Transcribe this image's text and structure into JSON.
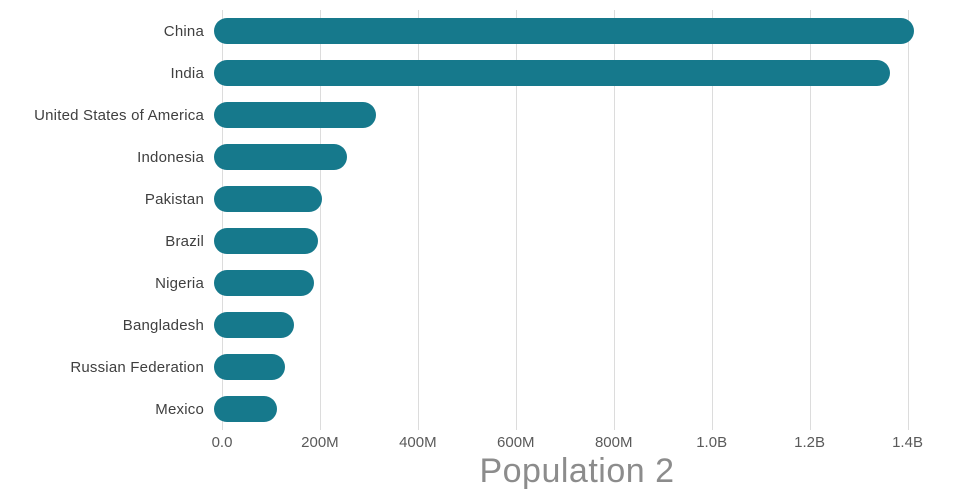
{
  "chart_data": {
    "type": "bar",
    "orientation": "horizontal",
    "title": "Population 2",
    "categories": [
      "China",
      "India",
      "United States of America",
      "Indonesia",
      "Pakistan",
      "Brazil",
      "Nigeria",
      "Bangladesh",
      "Russian Federation",
      "Mexico"
    ],
    "values": [
      1430000000,
      1380000000,
      330000000,
      272000000,
      220000000,
      212000000,
      205000000,
      164000000,
      145000000,
      128000000
    ],
    "series": [
      {
        "name": "Population",
        "values": [
          1430000000,
          1380000000,
          330000000,
          272000000,
          220000000,
          212000000,
          205000000,
          164000000,
          145000000,
          128000000
        ]
      }
    ],
    "x_ticks": [
      {
        "value": 0,
        "label": "0.0"
      },
      {
        "value": 200000000,
        "label": "200M"
      },
      {
        "value": 400000000,
        "label": "400M"
      },
      {
        "value": 600000000,
        "label": "600M"
      },
      {
        "value": 800000000,
        "label": "800M"
      },
      {
        "value": 1000000000,
        "label": "1.0B"
      },
      {
        "value": 1200000000,
        "label": "1.2B"
      },
      {
        "value": 1400000000,
        "label": "1.4B"
      }
    ],
    "xlim": [
      0,
      1450000000
    ],
    "grid": true,
    "legend_position": "none",
    "bar_color": "#16798c",
    "gridline_color": "#dcdcdc",
    "title_color": "#8c8c8c",
    "xlabel": "",
    "ylabel": ""
  }
}
